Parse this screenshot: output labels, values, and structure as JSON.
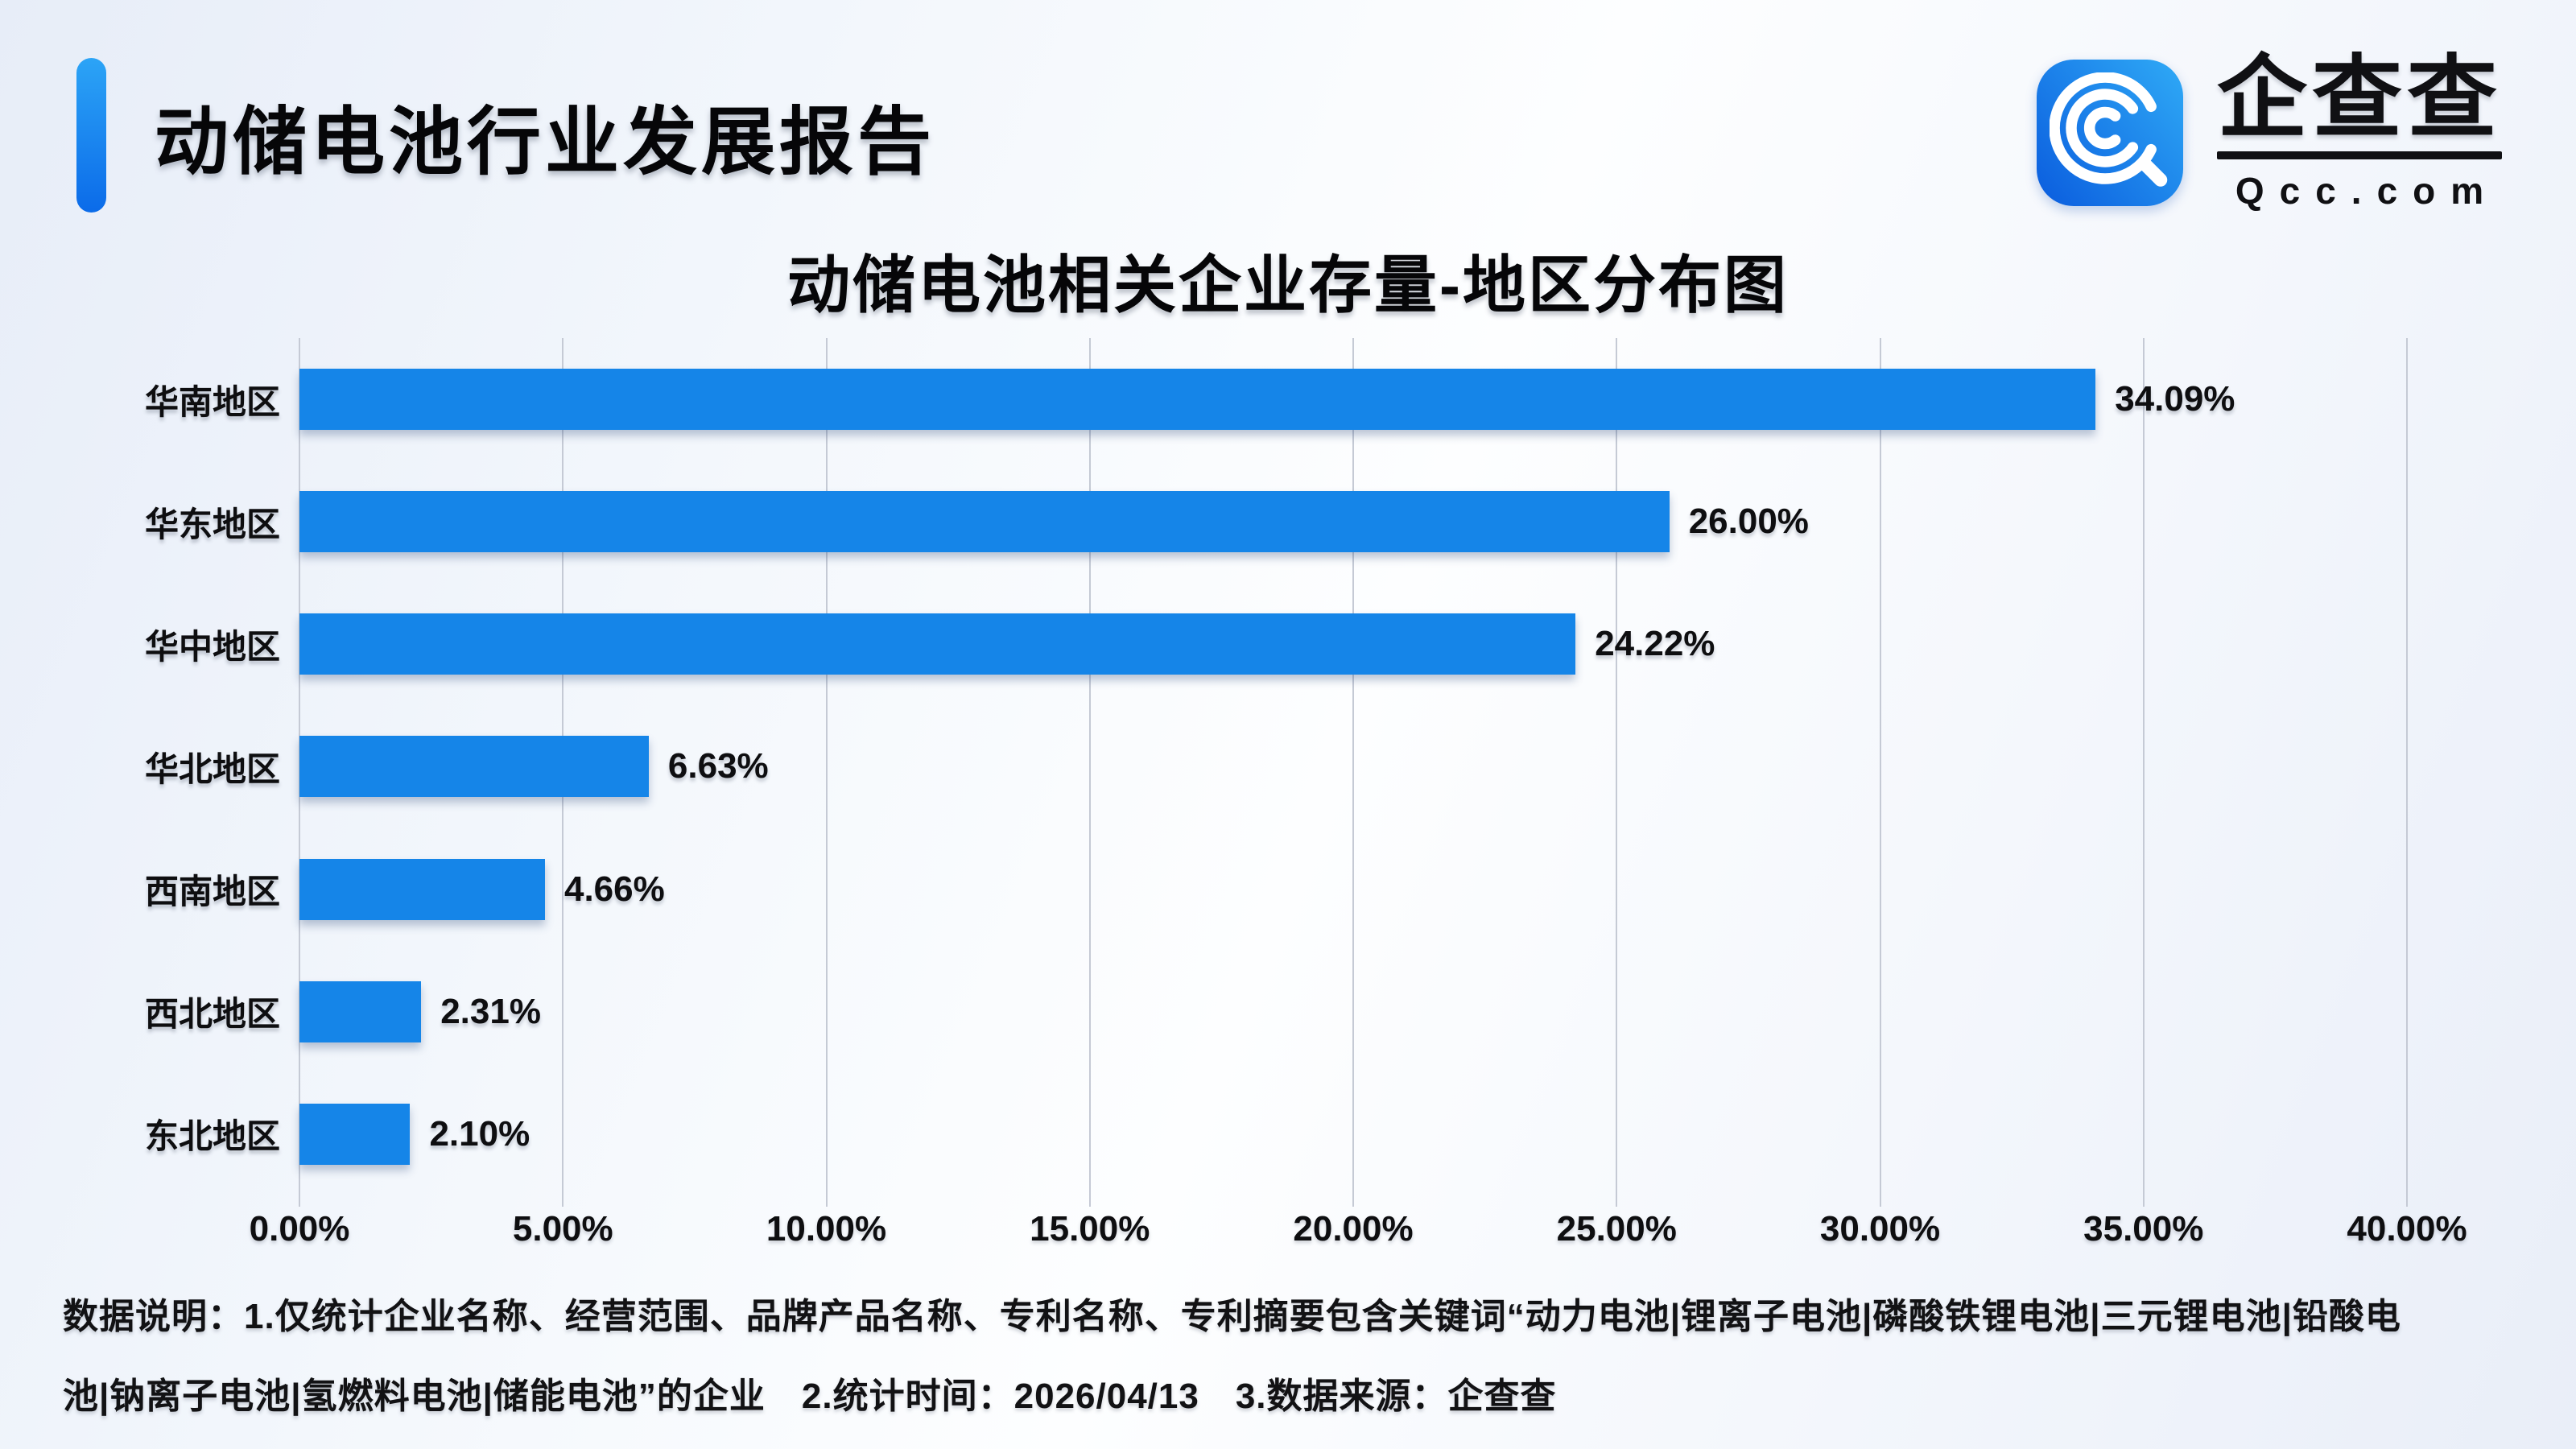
{
  "header": {
    "title": "动储电池行业发展报告",
    "logo": {
      "brand": "企查查",
      "domain": "Qcc.com"
    }
  },
  "chart_data": {
    "type": "bar",
    "orientation": "horizontal",
    "title": "动储电池相关企业存量-地区分布图",
    "categories": [
      "华南地区",
      "华东地区",
      "华中地区",
      "华北地区",
      "西南地区",
      "西北地区",
      "东北地区"
    ],
    "values": [
      34.09,
      26.0,
      24.22,
      6.63,
      4.66,
      2.31,
      2.1
    ],
    "value_labels": [
      "34.09%",
      "26.00%",
      "24.22%",
      "6.63%",
      "4.66%",
      "2.31%",
      "2.10%"
    ],
    "x_ticks": [
      "0.00%",
      "5.00%",
      "10.00%",
      "15.00%",
      "20.00%",
      "25.00%",
      "30.00%",
      "35.00%",
      "40.00%"
    ],
    "xlim": [
      0,
      40
    ],
    "grid": true,
    "legend": null,
    "bar_color": "#1585E8",
    "grid_color": "#C5CAD5"
  },
  "footer": {
    "line1": "数据说明：1.仅统计企业名称、经营范围、品牌产品名称、专利名称、专利摘要包含关键词“动力电池|锂离子电池|磷酸铁锂电池|三元锂电池|铅酸电",
    "line2": "池|钠离子电池|氢燃料电池|储能电池”的企业　2.统计时间：2026/04/13　3.数据来源：企查查"
  }
}
